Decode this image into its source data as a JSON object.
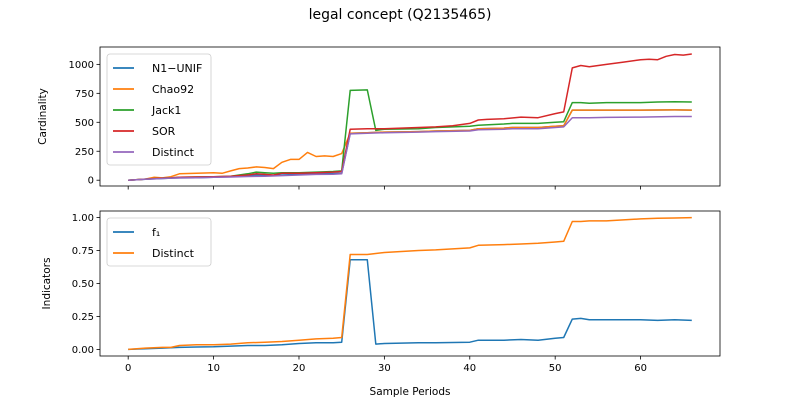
{
  "title": "legal concept (Q2135465)",
  "chart_data": [
    {
      "type": "line",
      "ylabel": "Cardinality",
      "xlim": [
        -3.3,
        69.3
      ],
      "ylim": [
        -50,
        1150
      ],
      "xticks": [
        0,
        10,
        20,
        30,
        40,
        50,
        60
      ],
      "yticks": [
        0,
        250,
        500,
        750,
        1000
      ],
      "ytick_labels": [
        "0",
        "250",
        "500",
        "750",
        "1000"
      ],
      "show_xtick_labels": false,
      "legend_position": "top-left",
      "grid": false,
      "series": [
        {
          "name": "N1−UNIF",
          "color": "#1f77b4",
          "x": [
            0,
            2,
            4,
            5,
            6,
            8,
            10,
            12,
            14,
            15,
            16,
            17,
            18,
            20,
            22,
            24,
            25,
            26,
            28,
            30,
            34,
            36,
            40,
            41,
            44,
            45,
            48,
            50,
            51,
            52,
            53,
            54,
            56,
            60,
            64,
            66
          ],
          "y": [
            0,
            8,
            15,
            18,
            20,
            22,
            25,
            30,
            40,
            45,
            42,
            40,
            45,
            50,
            55,
            58,
            60,
            405,
            410,
            415,
            420,
            425,
            430,
            445,
            450,
            455,
            455,
            465,
            470,
            605,
            605,
            605,
            605,
            605,
            607,
            605
          ]
        },
        {
          "name": "Chao92",
          "color": "#ff7f0e",
          "x": [
            0,
            2,
            3,
            4,
            5,
            6,
            8,
            10,
            11,
            12,
            13,
            14,
            15,
            16,
            17,
            18,
            19,
            20,
            21,
            22,
            23,
            24,
            25,
            26,
            28,
            30,
            34,
            36,
            40,
            41,
            44,
            45,
            48,
            50,
            51,
            52,
            53,
            54,
            56,
            60,
            64,
            66
          ],
          "y": [
            0,
            10,
            25,
            20,
            30,
            55,
            60,
            65,
            60,
            80,
            100,
            105,
            115,
            110,
            100,
            155,
            180,
            180,
            240,
            205,
            210,
            205,
            230,
            405,
            410,
            415,
            420,
            425,
            430,
            445,
            450,
            455,
            455,
            465,
            470,
            605,
            605,
            605,
            605,
            605,
            607,
            605
          ]
        },
        {
          "name": "Jack1",
          "color": "#2ca02c",
          "x": [
            0,
            2,
            4,
            5,
            6,
            8,
            10,
            12,
            14,
            15,
            16,
            17,
            18,
            20,
            22,
            24,
            25,
            26,
            28,
            29,
            30,
            34,
            36,
            40,
            41,
            44,
            45,
            48,
            50,
            51,
            52,
            53,
            54,
            56,
            60,
            62,
            64,
            66
          ],
          "y": [
            0,
            10,
            18,
            20,
            25,
            28,
            30,
            35,
            55,
            70,
            65,
            60,
            65,
            65,
            70,
            75,
            80,
            775,
            780,
            430,
            440,
            445,
            455,
            465,
            475,
            485,
            490,
            490,
            500,
            505,
            670,
            670,
            665,
            670,
            670,
            675,
            678,
            675
          ]
        },
        {
          "name": "SOR",
          "color": "#d62728",
          "x": [
            0,
            2,
            4,
            5,
            6,
            8,
            10,
            12,
            14,
            15,
            16,
            17,
            18,
            20,
            22,
            24,
            25,
            26,
            28,
            30,
            32,
            34,
            36,
            38,
            40,
            41,
            42,
            44,
            46,
            48,
            50,
            51,
            52,
            53,
            54,
            56,
            58,
            60,
            61,
            62,
            63,
            64,
            65,
            66
          ],
          "y": [
            0,
            10,
            18,
            20,
            25,
            28,
            30,
            35,
            45,
            55,
            50,
            45,
            60,
            60,
            65,
            70,
            75,
            440,
            445,
            445,
            450,
            455,
            460,
            470,
            490,
            520,
            525,
            530,
            545,
            540,
            575,
            590,
            970,
            990,
            980,
            1000,
            1020,
            1040,
            1045,
            1040,
            1070,
            1085,
            1080,
            1090
          ]
        },
        {
          "name": "Distinct",
          "color": "#9467bd",
          "x": [
            0,
            2,
            4,
            5,
            6,
            8,
            10,
            12,
            14,
            16,
            18,
            20,
            22,
            24,
            25,
            26,
            28,
            30,
            34,
            36,
            40,
            41,
            44,
            45,
            48,
            50,
            51,
            52,
            53,
            54,
            56,
            60,
            64,
            66
          ],
          "y": [
            0,
            8,
            15,
            18,
            20,
            22,
            25,
            28,
            32,
            35,
            40,
            45,
            50,
            52,
            55,
            400,
            405,
            410,
            415,
            420,
            425,
            435,
            440,
            445,
            445,
            455,
            460,
            540,
            540,
            540,
            542,
            545,
            550,
            550
          ]
        }
      ]
    },
    {
      "type": "line",
      "xlabel": "Sample Periods",
      "ylabel": "Indicators",
      "xlim": [
        -3.3,
        69.3
      ],
      "ylim": [
        -0.05,
        1.05
      ],
      "xticks": [
        0,
        10,
        20,
        30,
        40,
        50,
        60
      ],
      "yticks": [
        0.0,
        0.25,
        0.5,
        0.75,
        1.0
      ],
      "xtick_labels": [
        "0",
        "10",
        "20",
        "30",
        "40",
        "50",
        "60"
      ],
      "ytick_labels": [
        "0.00",
        "0.25",
        "0.50",
        "0.75",
        "1.00"
      ],
      "legend_position": "top-left",
      "grid": false,
      "series": [
        {
          "name": "f₁",
          "color": "#1f77b4",
          "x": [
            0,
            2,
            4,
            6,
            8,
            10,
            12,
            14,
            16,
            18,
            20,
            22,
            24,
            25,
            26,
            28,
            29,
            30,
            34,
            36,
            40,
            41,
            44,
            46,
            48,
            50,
            51,
            52,
            53,
            54,
            56,
            60,
            62,
            64,
            66
          ],
          "y": [
            0,
            0.005,
            0.01,
            0.015,
            0.018,
            0.02,
            0.025,
            0.03,
            0.03,
            0.035,
            0.045,
            0.05,
            0.05,
            0.055,
            0.68,
            0.68,
            0.04,
            0.045,
            0.05,
            0.05,
            0.055,
            0.07,
            0.07,
            0.075,
            0.07,
            0.085,
            0.09,
            0.23,
            0.235,
            0.225,
            0.225,
            0.225,
            0.22,
            0.225,
            0.22
          ]
        },
        {
          "name": "Distinct",
          "color": "#ff7f0e",
          "x": [
            0,
            2,
            4,
            5,
            6,
            8,
            10,
            12,
            14,
            16,
            18,
            20,
            22,
            24,
            25,
            26,
            28,
            30,
            34,
            36,
            40,
            41,
            44,
            46,
            48,
            50,
            51,
            52,
            53,
            54,
            56,
            60,
            62,
            64,
            66
          ],
          "y": [
            0,
            0.01,
            0.015,
            0.015,
            0.03,
            0.035,
            0.035,
            0.04,
            0.05,
            0.055,
            0.06,
            0.07,
            0.08,
            0.085,
            0.09,
            0.72,
            0.72,
            0.735,
            0.75,
            0.755,
            0.77,
            0.79,
            0.795,
            0.8,
            0.805,
            0.815,
            0.82,
            0.97,
            0.97,
            0.975,
            0.975,
            0.99,
            0.995,
            0.997,
            1.0
          ]
        }
      ]
    }
  ]
}
